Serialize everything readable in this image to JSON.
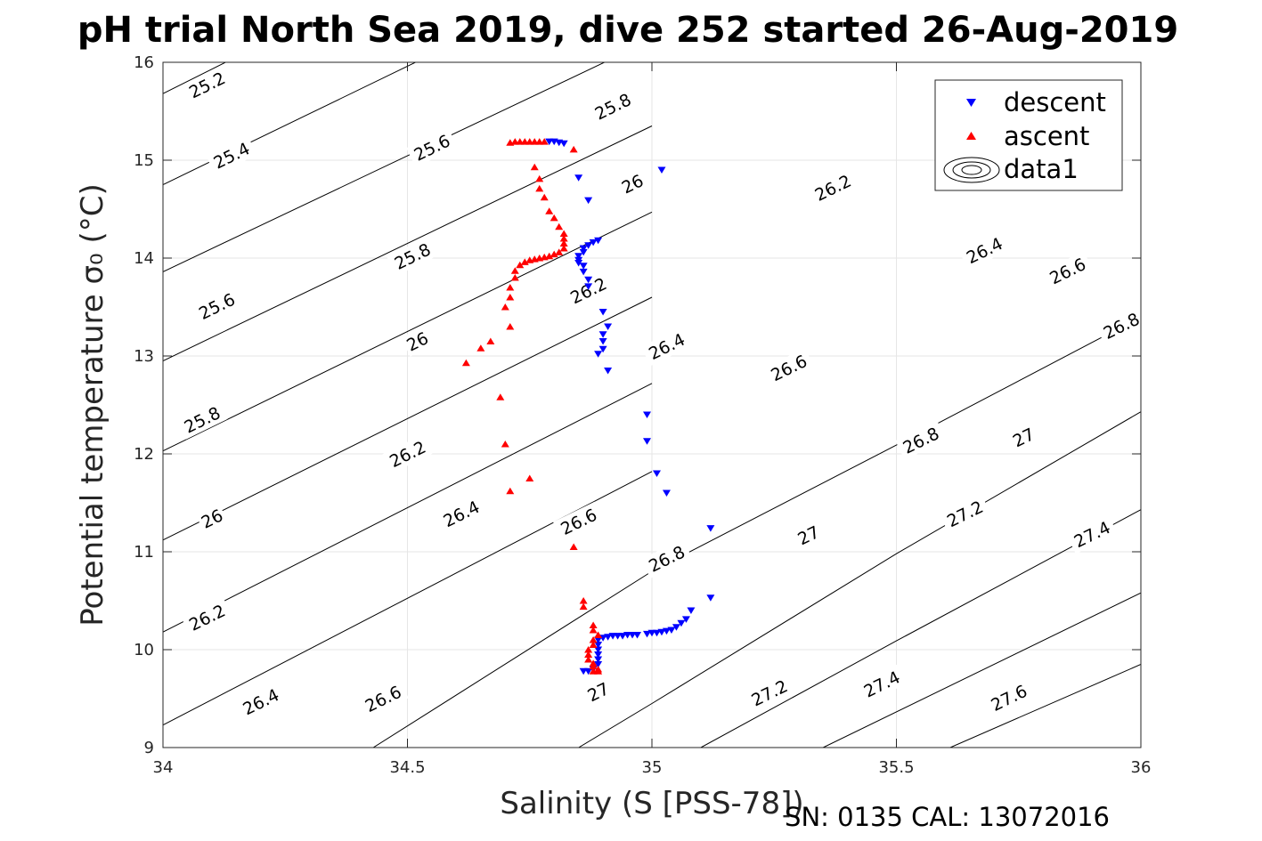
{
  "chart_data": {
    "type": "scatter",
    "title": "pH trial North Sea 2019, dive 252 started 26-Aug-2019",
    "xlabel": "Salinity (S [PSS-78])",
    "ylabel": "Potential temperature σ₀ (°C)",
    "footer": "SN: 0135  CAL: 13072016",
    "xlim": [
      34,
      36
    ],
    "ylim": [
      9,
      16
    ],
    "xticks": [
      34,
      34.5,
      35,
      35.5,
      36
    ],
    "xtick_labels": [
      "34",
      "34.5",
      "35",
      "35.5",
      "36"
    ],
    "yticks": [
      9,
      10,
      11,
      12,
      13,
      14,
      15,
      16
    ],
    "ytick_labels": [
      "9",
      "10",
      "11",
      "12",
      "13",
      "14",
      "15",
      "16"
    ],
    "grid": true,
    "legend_position": "top-right",
    "legend": [
      "descent",
      "ascent",
      "data1"
    ],
    "contours": {
      "name": "data1",
      "lines": [
        {
          "level": "25.2",
          "pts": [
            [
              34.0,
              15.68
            ],
            [
              34.5,
              16.93
            ]
          ]
        },
        {
          "level": "25.4",
          "pts": [
            [
              34.0,
              14.75
            ],
            [
              35.0,
              17.17
            ]
          ]
        },
        {
          "level": "25.6",
          "pts": [
            [
              34.0,
              13.86
            ],
            [
              35.0,
              16.23
            ]
          ]
        },
        {
          "level": "25.8",
          "pts": [
            [
              34.0,
              12.95
            ],
            [
              35.0,
              15.35
            ]
          ]
        },
        {
          "level": "26",
          "pts": [
            [
              34.0,
              12.03
            ],
            [
              35.0,
              14.47
            ]
          ]
        },
        {
          "level": "26.2",
          "pts": [
            [
              34.0,
              11.12
            ],
            [
              35.0,
              13.6
            ]
          ]
        },
        {
          "level": "26.4",
          "pts": [
            [
              34.0,
              10.18
            ],
            [
              35.0,
              12.72
            ]
          ]
        },
        {
          "level": "26.6",
          "pts": [
            [
              34.0,
              9.23
            ],
            [
              35.0,
              11.82
            ]
          ]
        },
        {
          "level": "26.8",
          "pts": [
            [
              34.43,
              9.0
            ],
            [
              35.0,
              10.8
            ],
            [
              35.5,
              12.09
            ],
            [
              36.0,
              13.4
            ]
          ]
        },
        {
          "level": "27",
          "pts": [
            [
              34.85,
              9.0
            ],
            [
              35.0,
              9.45
            ],
            [
              35.5,
              10.98
            ],
            [
              36.0,
              12.43
            ]
          ]
        },
        {
          "level": "27.2",
          "pts": [
            [
              35.1,
              9.0
            ],
            [
              35.5,
              10.09
            ],
            [
              36.0,
              11.43
            ]
          ]
        },
        {
          "level": "27.4",
          "pts": [
            [
              35.35,
              9.0
            ],
            [
              36.0,
              10.58
            ]
          ]
        },
        {
          "level": "27.6",
          "pts": [
            [
              35.61,
              9.0
            ],
            [
              36.0,
              9.85
            ]
          ]
        }
      ],
      "labels": [
        {
          "text": "25.2",
          "s": 34.09,
          "t": 15.77
        },
        {
          "text": "25.4",
          "s": 34.14,
          "t": 15.05
        },
        {
          "text": "25.6",
          "s": 34.11,
          "t": 13.51
        },
        {
          "text": "25.8",
          "s": 34.08,
          "t": 12.35
        },
        {
          "text": "26",
          "s": 34.1,
          "t": 11.34
        },
        {
          "text": "26.2",
          "s": 34.09,
          "t": 10.33
        },
        {
          "text": "26.4",
          "s": 34.2,
          "t": 9.47
        },
        {
          "text": "26.6",
          "s": 34.45,
          "t": 9.5
        },
        {
          "text": "25.6",
          "s": 34.55,
          "t": 15.13
        },
        {
          "text": "25.8",
          "s": 34.51,
          "t": 14.02
        },
        {
          "text": "26",
          "s": 34.52,
          "t": 13.15
        },
        {
          "text": "26.2",
          "s": 34.5,
          "t": 12.0
        },
        {
          "text": "26.4",
          "s": 34.61,
          "t": 11.39
        },
        {
          "text": "26.6",
          "s": 34.85,
          "t": 11.31
        },
        {
          "text": "27",
          "s": 34.89,
          "t": 9.57
        },
        {
          "text": "25.8",
          "s": 34.92,
          "t": 15.55
        },
        {
          "text": "26",
          "s": 34.96,
          "t": 14.76
        },
        {
          "text": "26.2",
          "s": 34.87,
          "t": 13.67
        },
        {
          "text": "26.4",
          "s": 35.03,
          "t": 13.1
        },
        {
          "text": "26.8",
          "s": 35.03,
          "t": 10.93
        },
        {
          "text": "26.2",
          "s": 35.37,
          "t": 14.72
        },
        {
          "text": "26.6",
          "s": 35.28,
          "t": 12.88
        },
        {
          "text": "27",
          "s": 35.32,
          "t": 11.17
        },
        {
          "text": "27.2",
          "s": 35.24,
          "t": 9.56
        },
        {
          "text": "26.4",
          "s": 35.68,
          "t": 14.08
        },
        {
          "text": "26.8",
          "s": 35.55,
          "t": 12.14
        },
        {
          "text": "27.2",
          "s": 35.64,
          "t": 11.39
        },
        {
          "text": "27.4",
          "s": 35.47,
          "t": 9.65
        },
        {
          "text": "26.6",
          "s": 35.85,
          "t": 13.87
        },
        {
          "text": "26.8",
          "s": 35.96,
          "t": 13.31
        },
        {
          "text": "27",
          "s": 35.76,
          "t": 12.17
        },
        {
          "text": "27.4",
          "s": 35.9,
          "t": 11.18
        },
        {
          "text": "27.6",
          "s": 35.73,
          "t": 9.51
        }
      ]
    },
    "series": [
      {
        "name": "descent",
        "marker": "triangle-down",
        "color": "#0000ff",
        "points": [
          [
            34.79,
            15.19
          ],
          [
            34.8,
            15.19
          ],
          [
            34.81,
            15.18
          ],
          [
            34.82,
            15.17
          ],
          [
            35.02,
            14.9
          ],
          [
            34.85,
            14.82
          ],
          [
            34.87,
            14.59
          ],
          [
            34.89,
            14.18
          ],
          [
            34.88,
            14.16
          ],
          [
            34.87,
            14.13
          ],
          [
            34.86,
            14.1
          ],
          [
            34.86,
            14.06
          ],
          [
            34.85,
            14.02
          ],
          [
            34.85,
            13.98
          ],
          [
            34.85,
            13.95
          ],
          [
            34.86,
            13.92
          ],
          [
            34.86,
            13.86
          ],
          [
            34.87,
            13.78
          ],
          [
            34.87,
            13.71
          ],
          [
            34.9,
            13.45
          ],
          [
            34.91,
            13.3
          ],
          [
            34.9,
            13.22
          ],
          [
            34.9,
            13.15
          ],
          [
            34.9,
            13.07
          ],
          [
            34.89,
            13.02
          ],
          [
            34.91,
            12.85
          ],
          [
            34.99,
            12.4
          ],
          [
            34.99,
            12.13
          ],
          [
            35.01,
            11.8
          ],
          [
            35.03,
            11.6
          ],
          [
            35.12,
            11.24
          ],
          [
            35.12,
            10.53
          ],
          [
            35.08,
            10.4
          ],
          [
            35.07,
            10.31
          ],
          [
            35.06,
            10.27
          ],
          [
            35.05,
            10.23
          ],
          [
            35.04,
            10.2
          ],
          [
            35.03,
            10.19
          ],
          [
            35.02,
            10.18
          ],
          [
            35.01,
            10.17
          ],
          [
            35.0,
            10.17
          ],
          [
            34.99,
            10.16
          ],
          [
            34.97,
            10.15
          ],
          [
            34.96,
            10.15
          ],
          [
            34.95,
            10.15
          ],
          [
            34.94,
            10.14
          ],
          [
            34.93,
            10.14
          ],
          [
            34.92,
            10.14
          ],
          [
            34.91,
            10.13
          ],
          [
            34.9,
            10.12
          ],
          [
            34.89,
            10.1
          ],
          [
            34.89,
            10.05
          ],
          [
            34.89,
            10.0
          ],
          [
            34.89,
            9.95
          ],
          [
            34.89,
            9.9
          ],
          [
            34.89,
            9.85
          ],
          [
            34.88,
            9.8
          ],
          [
            34.87,
            9.78
          ],
          [
            34.86,
            9.78
          ]
        ]
      },
      {
        "name": "ascent",
        "marker": "triangle-up",
        "color": "#ff0000",
        "points": [
          [
            34.71,
            15.18
          ],
          [
            34.72,
            15.19
          ],
          [
            34.73,
            15.19
          ],
          [
            34.74,
            15.19
          ],
          [
            34.75,
            15.19
          ],
          [
            34.76,
            15.19
          ],
          [
            34.77,
            15.19
          ],
          [
            34.78,
            15.19
          ],
          [
            34.84,
            15.11
          ],
          [
            34.76,
            14.93
          ],
          [
            34.77,
            14.81
          ],
          [
            34.77,
            14.71
          ],
          [
            34.78,
            14.62
          ],
          [
            34.79,
            14.48
          ],
          [
            34.8,
            14.41
          ],
          [
            34.81,
            14.32
          ],
          [
            34.82,
            14.25
          ],
          [
            34.82,
            14.2
          ],
          [
            34.82,
            14.15
          ],
          [
            34.82,
            14.1
          ],
          [
            34.81,
            14.06
          ],
          [
            34.8,
            14.04
          ],
          [
            34.79,
            14.02
          ],
          [
            34.78,
            14.01
          ],
          [
            34.77,
            14.0
          ],
          [
            34.76,
            13.99
          ],
          [
            34.75,
            13.98
          ],
          [
            34.74,
            13.96
          ],
          [
            34.73,
            13.93
          ],
          [
            34.72,
            13.87
          ],
          [
            34.72,
            13.8
          ],
          [
            34.71,
            13.7
          ],
          [
            34.71,
            13.6
          ],
          [
            34.7,
            13.5
          ],
          [
            34.71,
            13.3
          ],
          [
            34.67,
            13.15
          ],
          [
            34.65,
            13.08
          ],
          [
            34.62,
            12.93
          ],
          [
            34.69,
            12.58
          ],
          [
            34.7,
            12.1
          ],
          [
            34.71,
            11.62
          ],
          [
            34.75,
            11.75
          ],
          [
            34.84,
            11.05
          ],
          [
            34.86,
            10.44
          ],
          [
            34.86,
            10.5
          ],
          [
            34.88,
            10.25
          ],
          [
            34.88,
            10.2
          ],
          [
            34.89,
            10.15
          ],
          [
            34.88,
            10.1
          ],
          [
            34.88,
            10.05
          ],
          [
            34.87,
            10.0
          ],
          [
            34.87,
            9.95
          ],
          [
            34.87,
            9.9
          ],
          [
            34.88,
            9.86
          ],
          [
            34.88,
            9.83
          ],
          [
            34.89,
            9.8
          ],
          [
            34.88,
            9.78
          ],
          [
            34.89,
            9.78
          ]
        ]
      }
    ]
  }
}
